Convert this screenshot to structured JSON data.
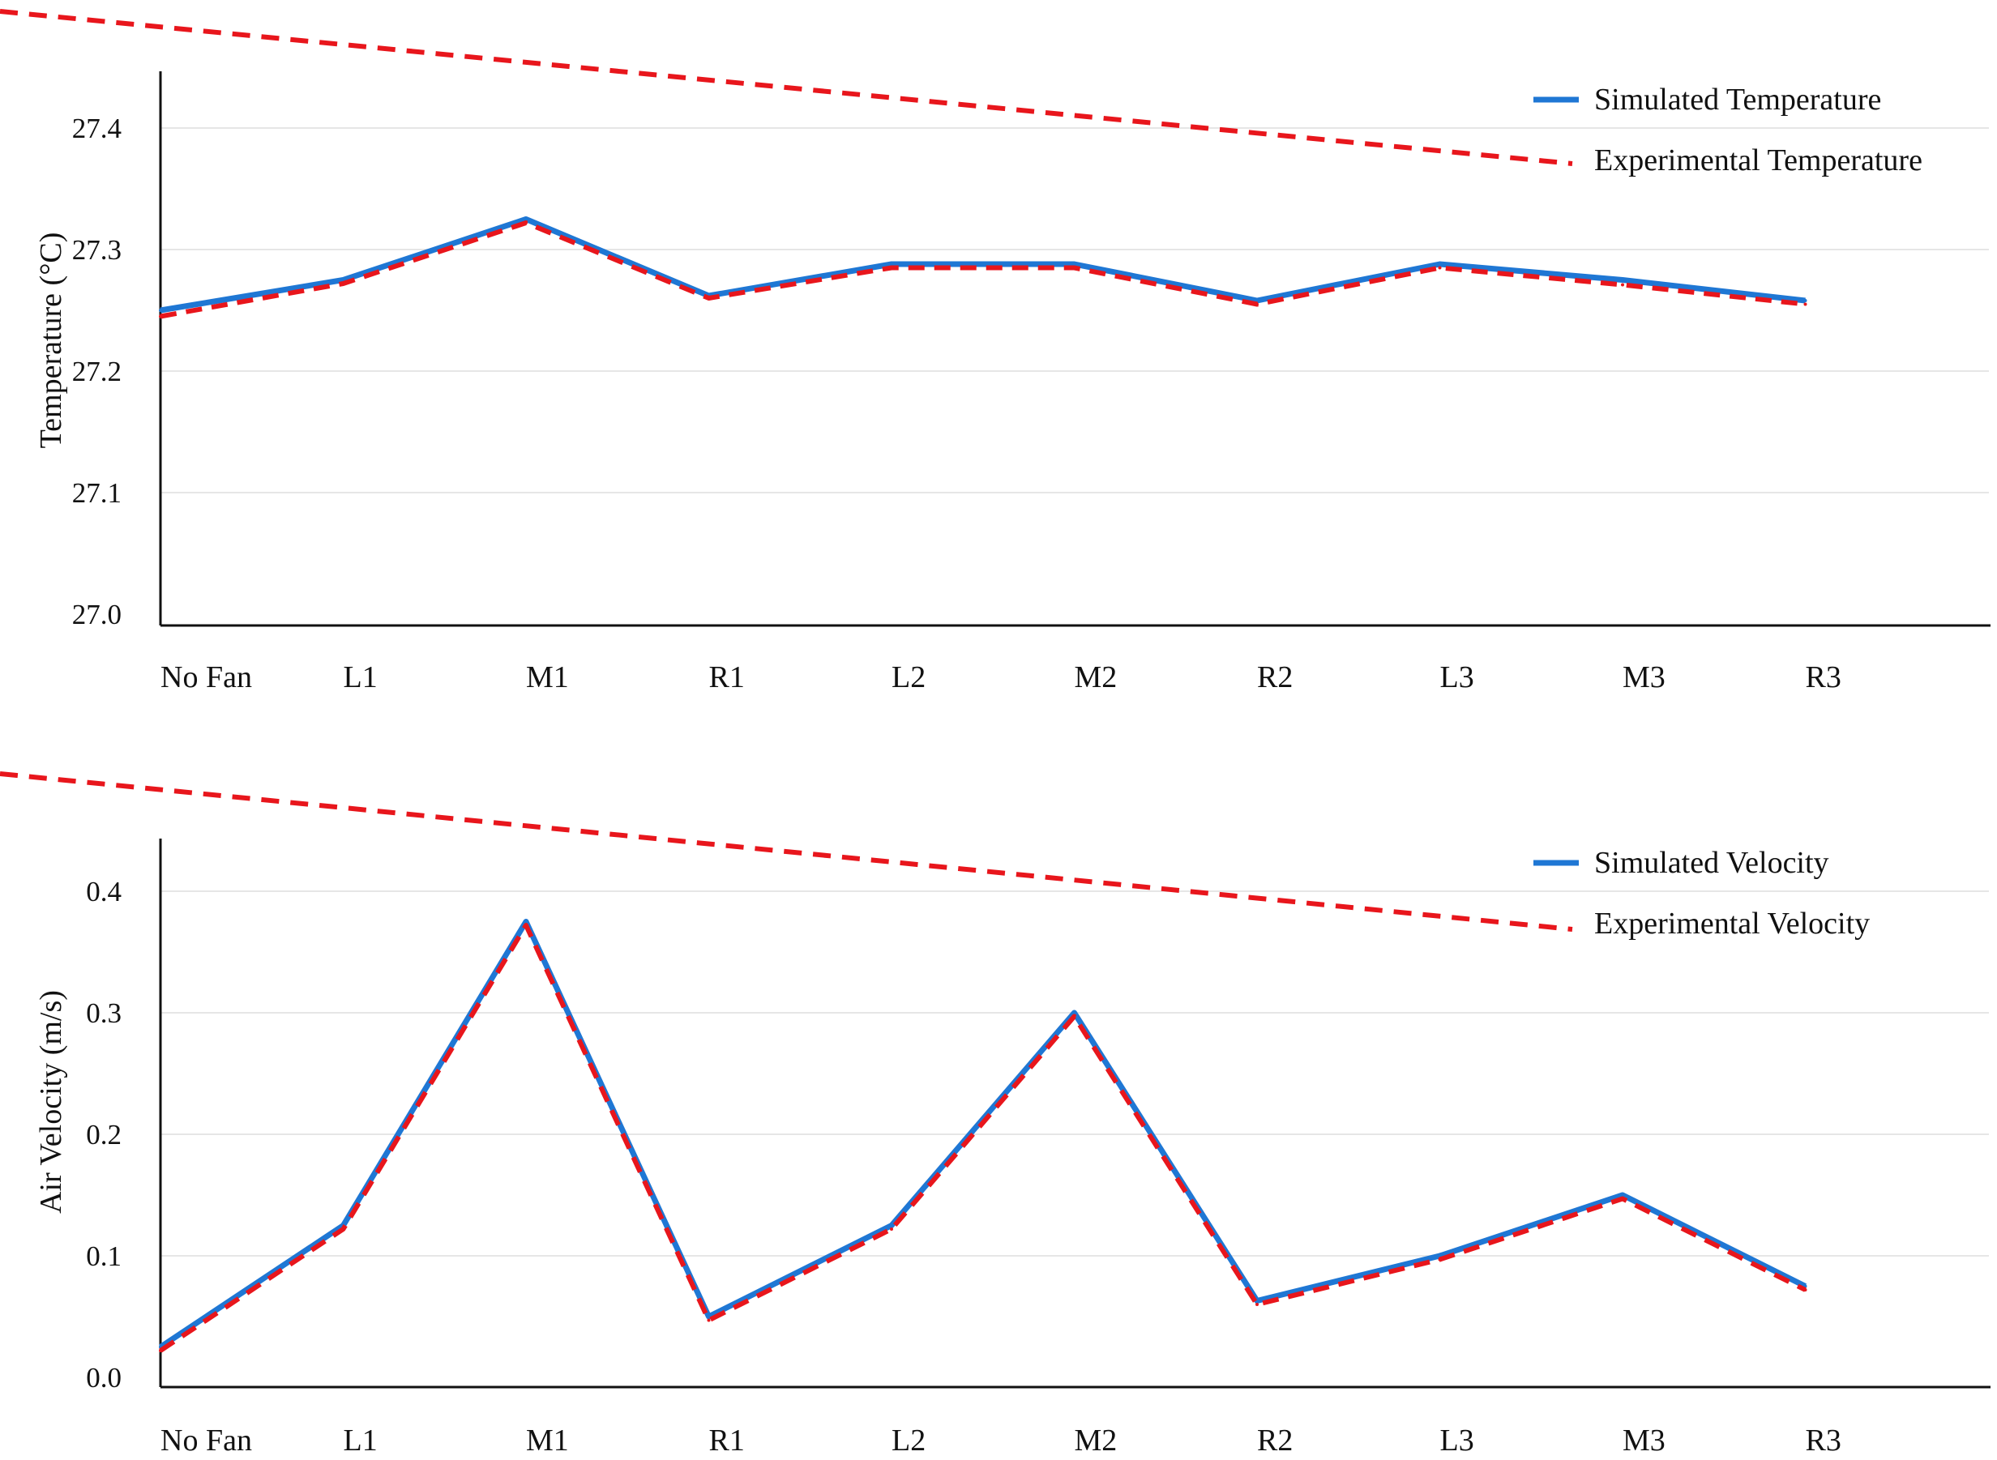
{
  "colors": {
    "simulated": "#1f77d4",
    "experimental": "#e8161c",
    "axis": "#111111",
    "grid": "#e6e6e6"
  },
  "chart_data": [
    {
      "type": "line",
      "ylabel": "Temperature (°C)",
      "ylim": [
        27.0,
        27.45
      ],
      "yticks": [
        27.0,
        27.1,
        27.2,
        27.3,
        27.4
      ],
      "ytick_labels": [
        "27.0",
        "27.1",
        "27.2",
        "27.3",
        "27.4"
      ],
      "categories": [
        "No Fan",
        "L1",
        "M1",
        "R1",
        "L2",
        "M2",
        "R2",
        "L3",
        "M3",
        "R3"
      ],
      "grid": true,
      "legend_position": "top-right",
      "series": [
        {
          "name": "Simulated Temperature",
          "style": "solid",
          "values": [
            27.25,
            27.275,
            27.325,
            27.262,
            27.288,
            27.288,
            27.258,
            27.288,
            27.275,
            27.258
          ]
        },
        {
          "name": "Experimental Temperature",
          "style": "dashed",
          "values": [
            27.245,
            27.272,
            27.322,
            27.26,
            27.285,
            27.285,
            27.255,
            27.285,
            27.271,
            27.255
          ]
        }
      ]
    },
    {
      "type": "line",
      "ylabel": "Air Velocity (m/s)",
      "ylim": [
        0.0,
        0.45
      ],
      "yticks": [
        0.0,
        0.1,
        0.2,
        0.3,
        0.4
      ],
      "ytick_labels": [
        "0.0",
        "0.1",
        "0.2",
        "0.3",
        "0.4"
      ],
      "categories": [
        "No Fan",
        "L1",
        "M1",
        "R1",
        "L2",
        "M2",
        "R2",
        "L3",
        "M3",
        "R3"
      ],
      "grid": true,
      "legend_position": "top-right",
      "series": [
        {
          "name": "Simulated Velocity",
          "style": "solid",
          "values": [
            0.025,
            0.125,
            0.375,
            0.05,
            0.125,
            0.3,
            0.063,
            0.1,
            0.15,
            0.075
          ]
        },
        {
          "name": "Experimental Velocity",
          "style": "dashed",
          "values": [
            0.022,
            0.122,
            0.372,
            0.047,
            0.122,
            0.297,
            0.06,
            0.097,
            0.147,
            0.072
          ]
        }
      ]
    }
  ]
}
